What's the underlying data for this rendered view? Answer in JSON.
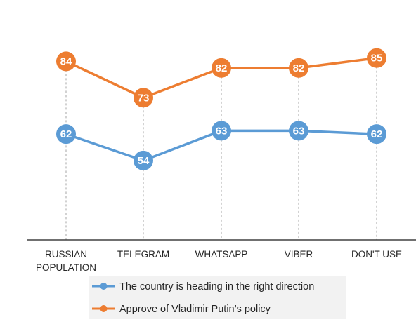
{
  "chart_data": {
    "type": "line",
    "categories": [
      "RUSSIAN POPULATION",
      "TELEGRAM",
      "WHATSAPP",
      "VIBER",
      "DON'T USE"
    ],
    "category_lines": [
      [
        "RUSSIAN",
        "POPULATION"
      ],
      [
        "TELEGRAM"
      ],
      [
        "WHATSAPP"
      ],
      [
        "VIBER"
      ],
      [
        "DON'T USE"
      ]
    ],
    "series": [
      {
        "name": "The country is heading in the right direction",
        "values": [
          62,
          54,
          63,
          63,
          62
        ],
        "color": "#5b9bd5"
      },
      {
        "name": "Approve of Vladimir  Putin’s policy",
        "values": [
          84,
          73,
          82,
          82,
          85
        ],
        "color": "#ed7d31"
      }
    ],
    "title": "",
    "xlabel": "",
    "ylabel": "",
    "ylim": [
      30,
      100
    ],
    "grid": "vertical dashed drop lines",
    "legend_position": "bottom"
  }
}
